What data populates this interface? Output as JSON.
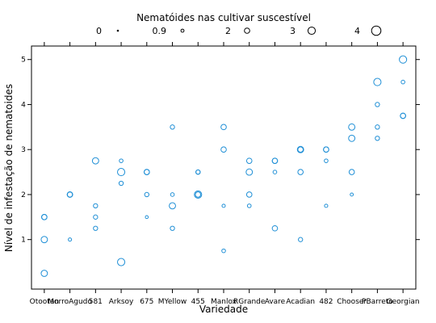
{
  "chart_data": {
    "type": "scatter",
    "title": "Nematóides nas cultivar suscestível",
    "xlabel": "Variedade",
    "ylabel": "Nível de infestação de nematoides",
    "ylim": [
      -0.1,
      5.3
    ],
    "yticks": [
      1,
      2,
      3,
      4,
      5
    ],
    "categories": [
      "Otootan",
      "MorroAgudo",
      "581",
      "Arksoy",
      "675",
      "MYellow",
      "455",
      "Manlox",
      "RGrande",
      "Avare",
      "Acadian",
      "482",
      "Chooser",
      "PBarreto",
      "Georgian"
    ],
    "legend": {
      "title": "Nematóides nas cultivar suscestível",
      "entries": [
        {
          "label": "0",
          "value": 0
        },
        {
          "label": "0.9",
          "value": 0.9
        },
        {
          "label": "2",
          "value": 2
        },
        {
          "label": "3",
          "value": 3
        },
        {
          "label": "4",
          "value": 4
        }
      ]
    },
    "point_color": "#1f8fd6",
    "points": [
      {
        "x": "Otootan",
        "y": 1.5,
        "size": 2
      },
      {
        "x": "Otootan",
        "y": 1.5,
        "size": 2
      },
      {
        "x": "Otootan",
        "y": 1.0,
        "size": 2.5
      },
      {
        "x": "Otootan",
        "y": 0.25,
        "size": 2.5
      },
      {
        "x": "MorroAgudo",
        "y": 2.0,
        "size": 2
      },
      {
        "x": "MorroAgudo",
        "y": 2.0,
        "size": 2
      },
      {
        "x": "MorroAgudo",
        "y": 2.0,
        "size": 2
      },
      {
        "x": "MorroAgudo",
        "y": 1.0,
        "size": 1
      },
      {
        "x": "581",
        "y": 2.75,
        "size": 2.5
      },
      {
        "x": "581",
        "y": 1.75,
        "size": 1.5
      },
      {
        "x": "581",
        "y": 1.5,
        "size": 1.5
      },
      {
        "x": "581",
        "y": 1.25,
        "size": 1.5
      },
      {
        "x": "Arksoy",
        "y": 2.75,
        "size": 1.2
      },
      {
        "x": "Arksoy",
        "y": 2.5,
        "size": 3
      },
      {
        "x": "Arksoy",
        "y": 2.25,
        "size": 1.5
      },
      {
        "x": "Arksoy",
        "y": 0.5,
        "size": 3
      },
      {
        "x": "675",
        "y": 2.5,
        "size": 2
      },
      {
        "x": "675",
        "y": 2.5,
        "size": 2
      },
      {
        "x": "675",
        "y": 2.0,
        "size": 1.5
      },
      {
        "x": "675",
        "y": 1.5,
        "size": 0.8
      },
      {
        "x": "MYellow",
        "y": 3.5,
        "size": 1.5
      },
      {
        "x": "MYellow",
        "y": 2.0,
        "size": 1.2
      },
      {
        "x": "MYellow",
        "y": 1.75,
        "size": 2.5
      },
      {
        "x": "MYellow",
        "y": 1.25,
        "size": 1.5
      },
      {
        "x": "455",
        "y": 2.5,
        "size": 1.5
      },
      {
        "x": "455",
        "y": 2.5,
        "size": 1.5
      },
      {
        "x": "455",
        "y": 2.0,
        "size": 3
      },
      {
        "x": "455",
        "y": 2.0,
        "size": 2
      },
      {
        "x": "Manlox",
        "y": 3.5,
        "size": 2
      },
      {
        "x": "Manlox",
        "y": 3.0,
        "size": 2
      },
      {
        "x": "Manlox",
        "y": 1.75,
        "size": 1
      },
      {
        "x": "Manlox",
        "y": 0.75,
        "size": 1.2
      },
      {
        "x": "RGrande",
        "y": 2.75,
        "size": 2
      },
      {
        "x": "RGrande",
        "y": 2.5,
        "size": 2.5
      },
      {
        "x": "RGrande",
        "y": 2.0,
        "size": 2
      },
      {
        "x": "RGrande",
        "y": 1.75,
        "size": 1.2
      },
      {
        "x": "Avare",
        "y": 2.75,
        "size": 2
      },
      {
        "x": "Avare",
        "y": 2.75,
        "size": 2
      },
      {
        "x": "Avare",
        "y": 2.5,
        "size": 1.2
      },
      {
        "x": "Avare",
        "y": 1.25,
        "size": 2
      },
      {
        "x": "Acadian",
        "y": 3.0,
        "size": 2.5
      },
      {
        "x": "Acadian",
        "y": 3.0,
        "size": 2
      },
      {
        "x": "Acadian",
        "y": 2.5,
        "size": 2
      },
      {
        "x": "Acadian",
        "y": 1.0,
        "size": 1.5
      },
      {
        "x": "482",
        "y": 3.0,
        "size": 2
      },
      {
        "x": "482",
        "y": 3.0,
        "size": 2
      },
      {
        "x": "482",
        "y": 2.75,
        "size": 1.2
      },
      {
        "x": "482",
        "y": 1.75,
        "size": 1
      },
      {
        "x": "Chooser",
        "y": 3.5,
        "size": 2.5
      },
      {
        "x": "Chooser",
        "y": 3.25,
        "size": 2.5
      },
      {
        "x": "Chooser",
        "y": 2.5,
        "size": 2
      },
      {
        "x": "Chooser",
        "y": 2.0,
        "size": 0.9
      },
      {
        "x": "PBarreto",
        "y": 4.5,
        "size": 3
      },
      {
        "x": "PBarreto",
        "y": 4.0,
        "size": 1.5
      },
      {
        "x": "PBarreto",
        "y": 3.5,
        "size": 1.5
      },
      {
        "x": "PBarreto",
        "y": 3.25,
        "size": 1.5
      },
      {
        "x": "Georgian",
        "y": 5.0,
        "size": 3
      },
      {
        "x": "Georgian",
        "y": 4.5,
        "size": 1.2
      },
      {
        "x": "Georgian",
        "y": 3.75,
        "size": 2
      },
      {
        "x": "Georgian",
        "y": 3.75,
        "size": 2
      }
    ]
  }
}
